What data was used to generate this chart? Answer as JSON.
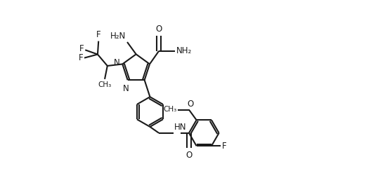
{
  "bg_color": "#ffffff",
  "line_color": "#1a1a1a",
  "line_width": 1.5,
  "font_size": 8.5,
  "figsize": [
    5.28,
    2.44
  ],
  "dpi": 100,
  "xlim": [
    -2.8,
    7.2
  ],
  "ylim": [
    -2.8,
    2.2
  ]
}
